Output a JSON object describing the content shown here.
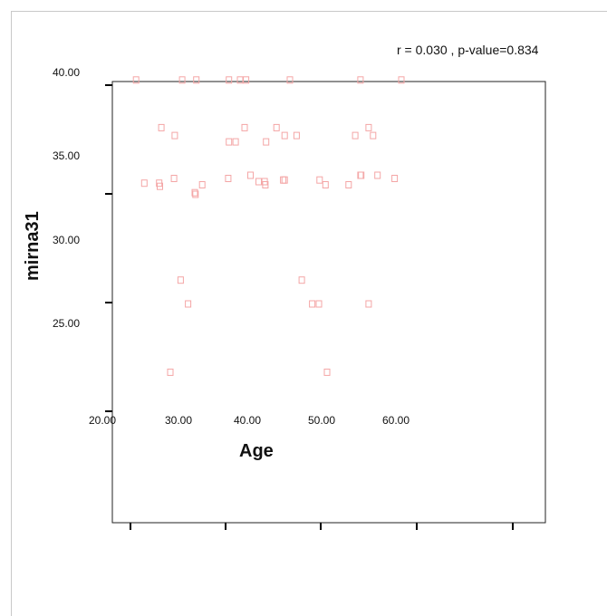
{
  "chart_data": {
    "type": "scatter",
    "title": "",
    "annotation": "r = 0.030 , p-value=0.834",
    "xlabel": "Age",
    "ylabel": "mirna31",
    "x_ticks": [
      "20.00",
      "30.00",
      "40.00",
      "50.00",
      "60.00"
    ],
    "y_ticks": [
      "40.00",
      "35.00",
      "30.00",
      "25.00"
    ],
    "xlim": [
      20,
      60
    ],
    "ylim": [
      20,
      40
    ],
    "marker_color": "#f4a6a6",
    "grid": false,
    "points": [
      {
        "x": 23.2,
        "y": 39.7
      },
      {
        "x": 29.4,
        "y": 39.7
      },
      {
        "x": 31.3,
        "y": 39.7
      },
      {
        "x": 35.7,
        "y": 39.7
      },
      {
        "x": 37.2,
        "y": 39.7
      },
      {
        "x": 38.0,
        "y": 39.7
      },
      {
        "x": 43.9,
        "y": 39.7
      },
      {
        "x": 53.4,
        "y": 39.7
      },
      {
        "x": 58.9,
        "y": 39.7
      },
      {
        "x": 26.6,
        "y": 36.7
      },
      {
        "x": 28.4,
        "y": 36.2
      },
      {
        "x": 35.7,
        "y": 35.8
      },
      {
        "x": 36.6,
        "y": 35.8
      },
      {
        "x": 37.8,
        "y": 36.7
      },
      {
        "x": 40.7,
        "y": 35.8
      },
      {
        "x": 42.1,
        "y": 36.7
      },
      {
        "x": 43.2,
        "y": 36.2
      },
      {
        "x": 44.8,
        "y": 36.2
      },
      {
        "x": 52.7,
        "y": 36.2
      },
      {
        "x": 54.5,
        "y": 36.7
      },
      {
        "x": 55.1,
        "y": 36.2
      },
      {
        "x": 24.3,
        "y": 33.2
      },
      {
        "x": 26.3,
        "y": 33.2
      },
      {
        "x": 26.4,
        "y": 33.0
      },
      {
        "x": 28.3,
        "y": 33.5
      },
      {
        "x": 31.1,
        "y": 32.6
      },
      {
        "x": 31.2,
        "y": 32.5
      },
      {
        "x": 32.1,
        "y": 33.1
      },
      {
        "x": 35.6,
        "y": 33.5
      },
      {
        "x": 38.6,
        "y": 33.7
      },
      {
        "x": 39.7,
        "y": 33.3
      },
      {
        "x": 40.5,
        "y": 33.3
      },
      {
        "x": 40.6,
        "y": 33.1
      },
      {
        "x": 43.0,
        "y": 33.4
      },
      {
        "x": 43.2,
        "y": 33.4
      },
      {
        "x": 47.9,
        "y": 33.4
      },
      {
        "x": 48.7,
        "y": 33.1
      },
      {
        "x": 51.8,
        "y": 33.1
      },
      {
        "x": 53.4,
        "y": 33.7
      },
      {
        "x": 53.5,
        "y": 33.7
      },
      {
        "x": 55.7,
        "y": 33.7
      },
      {
        "x": 58.0,
        "y": 33.5
      },
      {
        "x": 29.2,
        "y": 27.1
      },
      {
        "x": 30.2,
        "y": 25.6
      },
      {
        "x": 45.5,
        "y": 27.1
      },
      {
        "x": 46.9,
        "y": 25.6
      },
      {
        "x": 47.8,
        "y": 25.6
      },
      {
        "x": 54.5,
        "y": 25.6
      },
      {
        "x": 27.8,
        "y": 21.3
      },
      {
        "x": 48.9,
        "y": 21.3
      }
    ]
  }
}
